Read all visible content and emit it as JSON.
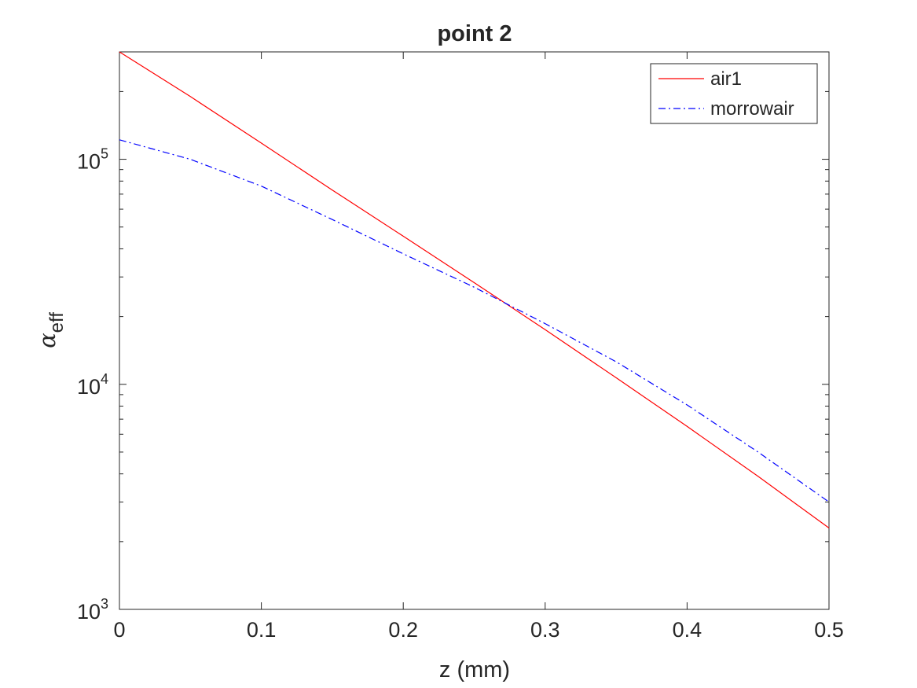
{
  "chart_data": {
    "type": "line",
    "title": "point 2",
    "xlabel": "z (mm)",
    "ylabel": {
      "symbol": "α",
      "subscript": "eff"
    },
    "xlim": [
      0,
      0.5
    ],
    "ylim": [
      1000,
      300000
    ],
    "yscale": "log",
    "grid": false,
    "legend_position": "top-right",
    "x_ticks": [
      0,
      0.1,
      0.2,
      0.3,
      0.4,
      0.5
    ],
    "x_tick_labels": [
      "0",
      "0.1",
      "0.2",
      "0.3",
      "0.4",
      "0.5"
    ],
    "y_ticks": [
      {
        "value": 1000,
        "base": "10",
        "exponent": "3"
      },
      {
        "value": 10000,
        "base": "10",
        "exponent": "4"
      },
      {
        "value": 100000,
        "base": "10",
        "exponent": "5"
      }
    ],
    "series": [
      {
        "name": "air1",
        "color": "#ff0000",
        "style": "solid",
        "x": [
          0,
          0.05,
          0.1,
          0.15,
          0.2,
          0.25,
          0.3,
          0.35,
          0.4,
          0.45,
          0.5
        ],
        "y": [
          300000,
          190000,
          118000,
          73000,
          45500,
          28300,
          17500,
          10700,
          6500,
          3900,
          2300
        ]
      },
      {
        "name": "morrowair",
        "color": "#0000ff",
        "style": "dash-dot",
        "x": [
          0,
          0.05,
          0.1,
          0.15,
          0.2,
          0.25,
          0.3,
          0.35,
          0.4,
          0.45,
          0.5
        ],
        "y": [
          122000,
          100000,
          76000,
          54000,
          38000,
          27000,
          18600,
          12600,
          8100,
          5000,
          3000
        ]
      }
    ]
  }
}
